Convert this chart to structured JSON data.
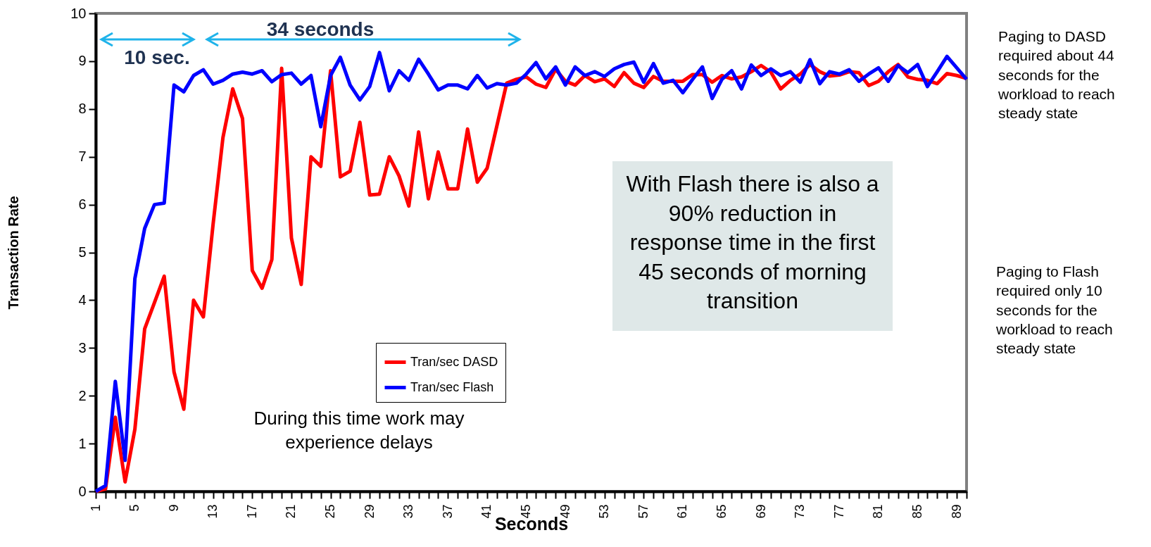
{
  "chart_data": {
    "type": "line",
    "xlabel": "Seconds",
    "ylabel": "Transaction Rate",
    "categories": [
      "1",
      null,
      null,
      null,
      "5",
      null,
      null,
      null,
      "9",
      null,
      null,
      null,
      "13",
      null,
      null,
      null,
      "17",
      null,
      null,
      null,
      "21",
      null,
      null,
      null,
      "25",
      null,
      null,
      null,
      "29",
      null,
      null,
      null,
      "33",
      null,
      null,
      null,
      "37",
      null,
      null,
      null,
      "41",
      null,
      null,
      null,
      "45",
      null,
      null,
      null,
      "49",
      null,
      null,
      null,
      "53",
      null,
      null,
      null,
      "57",
      null,
      null,
      null,
      "61",
      null,
      null,
      null,
      "65",
      null,
      null,
      null,
      "69",
      null,
      null,
      null,
      "73",
      null,
      null,
      null,
      "77",
      null,
      null,
      null,
      "81",
      null,
      null,
      null,
      "85",
      null,
      null,
      null,
      "89",
      null
    ],
    "series": [
      {
        "name": "Tran/sec DASD",
        "color": "#ff0000",
        "values": [
          0,
          0.05,
          1.55,
          0.2,
          1.3,
          3.4,
          3.95,
          4.5,
          2.5,
          1.72,
          4.0,
          3.65,
          5.6,
          7.4,
          8.42,
          7.8,
          4.62,
          4.25,
          4.85,
          8.85,
          5.3,
          4.33,
          7.0,
          6.8,
          8.8,
          6.58,
          6.7,
          7.72,
          6.2,
          6.22,
          7.0,
          6.6,
          5.97,
          7.52,
          6.12,
          7.1,
          6.33,
          6.33,
          7.58,
          6.47,
          6.76,
          7.65,
          8.54,
          8.62,
          8.67,
          8.52,
          8.45,
          8.83,
          8.58,
          8.5,
          8.7,
          8.57,
          8.63,
          8.47,
          8.76,
          8.54,
          8.45,
          8.68,
          8.58,
          8.58,
          8.58,
          8.72,
          8.72,
          8.56,
          8.7,
          8.63,
          8.67,
          8.78,
          8.91,
          8.77,
          8.42,
          8.6,
          8.73,
          8.93,
          8.78,
          8.69,
          8.71,
          8.78,
          8.76,
          8.49,
          8.58,
          8.78,
          8.93,
          8.67,
          8.62,
          8.6,
          8.53,
          8.74,
          8.7,
          8.64
        ]
      },
      {
        "name": "Tran/sec Flash",
        "color": "#0000ff",
        "values": [
          0,
          0.12,
          2.3,
          0.65,
          4.45,
          5.5,
          6.0,
          6.03,
          8.5,
          8.36,
          8.7,
          8.82,
          8.52,
          8.6,
          8.73,
          8.77,
          8.73,
          8.8,
          8.57,
          8.72,
          8.75,
          8.52,
          8.7,
          7.63,
          8.7,
          9.08,
          8.5,
          8.19,
          8.47,
          9.18,
          8.38,
          8.8,
          8.6,
          9.04,
          8.73,
          8.4,
          8.5,
          8.5,
          8.42,
          8.7,
          8.44,
          8.53,
          8.5,
          8.54,
          8.73,
          8.97,
          8.63,
          8.88,
          8.5,
          8.88,
          8.7,
          8.78,
          8.68,
          8.84,
          8.93,
          8.98,
          8.56,
          8.95,
          8.54,
          8.6,
          8.34,
          8.62,
          8.88,
          8.22,
          8.62,
          8.8,
          8.42,
          8.92,
          8.7,
          8.84,
          8.7,
          8.78,
          8.56,
          9.03,
          8.53,
          8.78,
          8.73,
          8.82,
          8.58,
          8.73,
          8.86,
          8.58,
          8.91,
          8.76,
          8.93,
          8.47,
          8.78,
          9.1,
          8.86,
          8.62
        ]
      }
    ],
    "ylim": [
      0,
      10
    ],
    "yticks": [
      0,
      1,
      2,
      3,
      4,
      5,
      6,
      7,
      8,
      9,
      10
    ],
    "legend": "bottom",
    "marker": "none",
    "line_style": "solid",
    "annotations": [
      "10 sec.",
      "34 seconds",
      "During this time work may experience delays",
      "With Flash there is also a 90% reduction in response time in the first 45 seconds of morning transition",
      "Paging to DASD required about 44 seconds for the workload to reach steady state",
      "Paging to Flash required only 10 seconds for the workload to reach steady state"
    ]
  }
}
